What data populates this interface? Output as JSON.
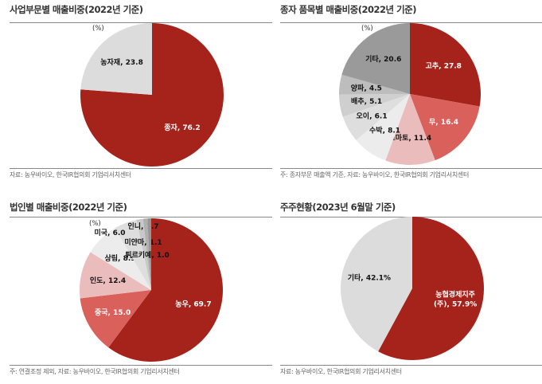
{
  "chart_data": [
    {
      "type": "pie",
      "title": "사업부문별 매출비중(2022년 기준)",
      "unit": "(%)",
      "note": "자료: 농우바이오, 한국IR협의회 기업리서치센터",
      "slices": [
        {
          "label": "종자, 76.2",
          "name": "종자",
          "value": 76.2,
          "color": "#a6231c"
        },
        {
          "label": "농자재, 23.8",
          "name": "농자재",
          "value": 23.8,
          "color": "#dcdcdc"
        }
      ]
    },
    {
      "type": "pie",
      "title": "종자 품목별 매출비중(2022년 기준)",
      "unit": "(%)",
      "note": "주: 종자부문 매출액 기준, 자료: 농우바이오, 한국IR협의회 기업리서치센터",
      "slices": [
        {
          "label": "고추, 27.8",
          "name": "고추",
          "value": 27.8,
          "color": "#a6231c"
        },
        {
          "label": "무, 16.4",
          "name": "무",
          "value": 16.4,
          "color": "#d9605b"
        },
        {
          "label": "토마토, 11.4",
          "name": "토마토",
          "value": 11.4,
          "color": "#ebbcbc"
        },
        {
          "label": "수박, 8.1",
          "name": "수박",
          "value": 8.1,
          "color": "#ececec"
        },
        {
          "label": "오이, 6.1",
          "name": "오이",
          "value": 6.1,
          "color": "#dedede"
        },
        {
          "label": "배추, 5.1",
          "name": "배추",
          "value": 5.1,
          "color": "#cfcfcf"
        },
        {
          "label": "양파, 4.5",
          "name": "양파",
          "value": 4.5,
          "color": "#bdbdbd"
        },
        {
          "label": "기타, 20.6",
          "name": "기타",
          "value": 20.6,
          "color": "#9a9a9a"
        }
      ]
    },
    {
      "type": "pie",
      "title": "법인별 매출비중(2022년 기준)",
      "unit": "(%)",
      "note": "주: 연결조정 제외, 자료: 농우바이오, 한국IR협의회 기업리서치센터",
      "slices": [
        {
          "label": "농우, 69.7",
          "name": "농우",
          "value": 69.7,
          "color": "#a6231c"
        },
        {
          "label": "중국, 15.0",
          "name": "중국",
          "value": 15.0,
          "color": "#d9605b"
        },
        {
          "label": "인도, 12.4",
          "name": "인도",
          "value": 12.4,
          "color": "#ebbcbc"
        },
        {
          "label": "상림, 8.9",
          "name": "상림",
          "value": 8.9,
          "color": "#ececec"
        },
        {
          "label": "미국, 6.0",
          "name": "미국",
          "value": 6.0,
          "color": "#dedede"
        },
        {
          "label": "인니, 1.7",
          "name": "인니",
          "value": 1.7,
          "color": "#c8c8c8"
        },
        {
          "label": "미얀마, 1.1",
          "name": "미얀마",
          "value": 1.1,
          "color": "#b0b0b0"
        },
        {
          "label": "튀르키예, 1.0",
          "name": "튀르키예",
          "value": 1.0,
          "color": "#959595"
        }
      ]
    },
    {
      "type": "pie",
      "title": "주주현황(2023년 6월말 기준)",
      "unit": "",
      "note": "자료: 농우바이오, 한국IR협의회 기업리서치센터",
      "slices": [
        {
          "label": "농협경제지주\n(주), 57.9%",
          "name": "농협경제지주(주)",
          "value": 57.9,
          "color": "#a6231c"
        },
        {
          "label": "기타, 42.1%",
          "name": "기타",
          "value": 42.1,
          "color": "#dcdcdc"
        }
      ]
    }
  ]
}
